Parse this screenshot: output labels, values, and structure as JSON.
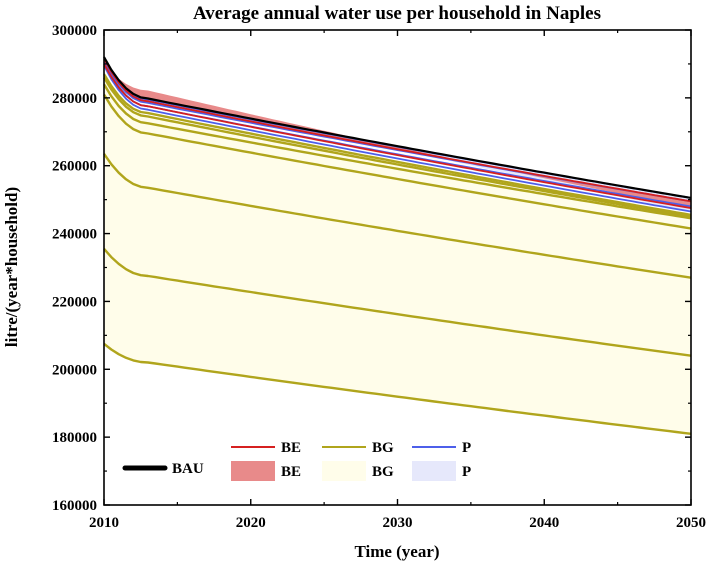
{
  "chart_data": {
    "type": "line",
    "title": "Average annual water use per household in Naples",
    "xlabel": "Time (year)",
    "ylabel": "litre/(year*household)",
    "xlim": [
      2010,
      2050
    ],
    "ylim": [
      160000,
      300000
    ],
    "x_ticks": [
      "2010",
      "2020",
      "2030",
      "2040",
      "2050"
    ],
    "y_ticks": [
      "160000",
      "180000",
      "200000",
      "220000",
      "240000",
      "260000",
      "280000",
      "300000"
    ],
    "x_tick_values": [
      2010,
      2020,
      2030,
      2040,
      2050
    ],
    "y_tick_values": [
      160000,
      180000,
      200000,
      220000,
      240000,
      260000,
      280000,
      300000
    ],
    "colors": {
      "BAU": "#000000",
      "BE": "#d62020",
      "BE_band": "#e88a8a",
      "BG": "#b0a51c",
      "BG_band": "#fffdea",
      "P": "#4d5fea",
      "P_band": "#e6e8fb"
    },
    "bands": [
      {
        "name": "BG",
        "color_key": "BG_band",
        "lower": [
          207500,
          181000
        ],
        "upper": [
          287000,
          245500
        ]
      },
      {
        "name": "P",
        "color_key": "P_band",
        "lower": [
          289500,
          246500
        ],
        "upper": [
          292000,
          250500
        ]
      },
      {
        "name": "BE",
        "color_key": "BE_band",
        "lower": [
          290000,
          247500
        ],
        "upper": [
          291500,
          249500
        ]
      }
    ],
    "series": [
      {
        "name": "BG",
        "start": 207500,
        "knee": 202000,
        "end": 181000
      },
      {
        "name": "BG",
        "start": 235500,
        "knee": 227500,
        "end": 204000
      },
      {
        "name": "BG",
        "start": 263500,
        "knee": 253500,
        "end": 227000
      },
      {
        "name": "BG",
        "start": 281000,
        "knee": 269500,
        "end": 241500
      },
      {
        "name": "BG",
        "start": 284000,
        "knee": 272500,
        "end": 244500
      },
      {
        "name": "BG",
        "start": 286000,
        "knee": 274500,
        "end": 245000
      },
      {
        "name": "BG",
        "start": 287000,
        "knee": 275500,
        "end": 245500
      },
      {
        "name": "P",
        "start": 289500,
        "knee": 276500,
        "end": 246500
      },
      {
        "name": "P",
        "start": 290500,
        "knee": 277500,
        "end": 248000
      },
      {
        "name": "P",
        "start": 291200,
        "knee": 278500,
        "end": 249500
      },
      {
        "name": "P",
        "start": 292000,
        "knee": 279500,
        "end": 250500
      },
      {
        "name": "BE",
        "start": 290000,
        "knee": 277500,
        "end": 247500
      },
      {
        "name": "BE",
        "start": 291500,
        "knee": 279000,
        "end": 249500
      },
      {
        "name": "BAU",
        "start": 292000,
        "knee": 279800,
        "end": 250500
      }
    ],
    "legend": {
      "placement": "bottom-left",
      "items": [
        {
          "label": "BAU",
          "kind": "thick-line",
          "color_key": "BAU"
        },
        {
          "label": "BE",
          "kind": "line",
          "color_key": "BE"
        },
        {
          "label": "BG",
          "kind": "line",
          "color_key": "BG"
        },
        {
          "label": "P",
          "kind": "line",
          "color_key": "P"
        },
        {
          "label": "BE",
          "kind": "patch",
          "color_key": "BE_band"
        },
        {
          "label": "BG",
          "kind": "patch",
          "color_key": "BG_band"
        },
        {
          "label": "P",
          "kind": "patch",
          "color_key": "P_band"
        }
      ]
    }
  }
}
